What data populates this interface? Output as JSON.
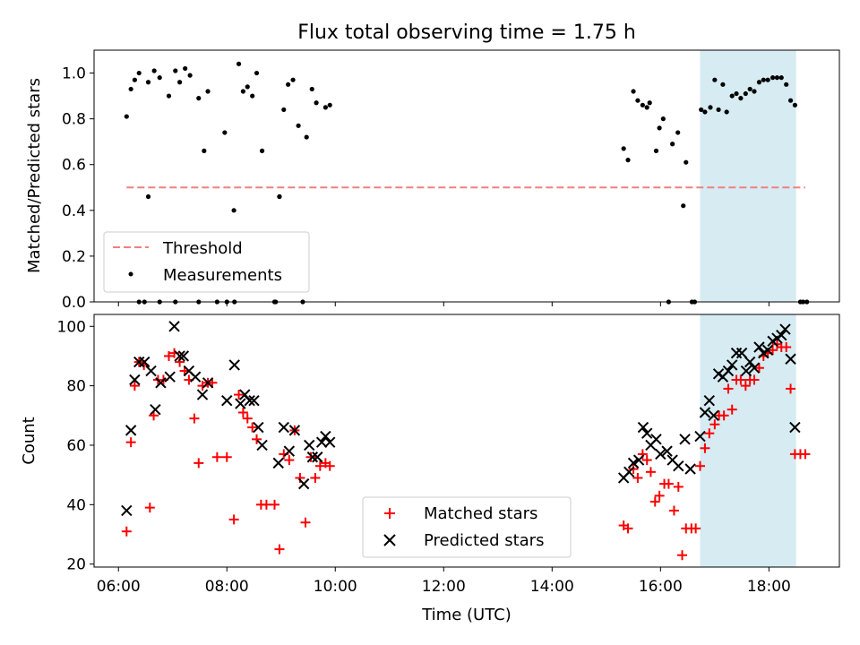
{
  "figure": {
    "title": "Flux total observing time = 1.75 h",
    "x_label": "Time (UTC)",
    "x_ticks": [
      {
        "value": 6,
        "label": "06:00"
      },
      {
        "value": 8,
        "label": "08:00"
      },
      {
        "value": 10,
        "label": "10:00"
      },
      {
        "value": 12,
        "label": "12:00"
      },
      {
        "value": 14,
        "label": "14:00"
      },
      {
        "value": 16,
        "label": "16:00"
      },
      {
        "value": 18,
        "label": "18:00"
      }
    ],
    "xlim": [
      5.55,
      19.3
    ],
    "highlight_span": [
      16.73,
      18.5
    ],
    "highlight_color": "#add8e6"
  },
  "chart_data": [
    {
      "type": "scatter",
      "panel": "top",
      "ylabel": "Matched/Predicted stars",
      "ylim": [
        0,
        1.1
      ],
      "y_ticks": [
        {
          "value": 0,
          "label": "0.0"
        },
        {
          "value": 0.2,
          "label": "0.2"
        },
        {
          "value": 0.4,
          "label": "0.4"
        },
        {
          "value": 0.6,
          "label": "0.6"
        },
        {
          "value": 0.8,
          "label": "0.8"
        },
        {
          "value": 1.0,
          "label": "1.0"
        }
      ],
      "legend_position": "lower-left",
      "threshold": {
        "name": "Threshold",
        "y": 0.5,
        "x_range": [
          6.15,
          18.67
        ],
        "color": "#f08080",
        "style": "dashed"
      },
      "series": [
        {
          "name": "Measurements",
          "color": "#000000",
          "marker": "dot",
          "x": [
            6.15,
            6.23,
            6.3,
            6.38,
            6.55,
            6.66,
            6.76,
            6.93,
            7.05,
            7.13,
            7.23,
            7.32,
            7.48,
            7.58,
            7.65,
            7.96,
            8.13,
            8.22,
            8.3,
            8.38,
            8.47,
            8.55,
            8.65,
            8.97,
            9.05,
            9.13,
            9.22,
            9.32,
            9.47,
            9.57,
            9.65,
            9.82,
            9.9,
            15.32,
            15.4,
            15.5,
            15.58,
            15.67,
            15.75,
            15.8,
            15.92,
            15.98,
            16.05,
            16.22,
            16.32,
            16.42,
            16.47,
            6.55,
            8.97,
            6.38,
            6.48,
            6.76,
            7.05,
            7.48,
            7.82,
            8.0,
            8.14,
            8.88,
            8.9,
            9.4,
            16.15,
            16.58,
            16.63,
            16.75,
            16.82,
            16.92,
            17.0,
            17.07,
            17.15,
            17.22,
            17.32,
            17.4,
            17.48,
            17.57,
            17.65,
            17.73,
            17.82,
            17.9,
            17.98,
            18.07,
            18.15,
            18.23,
            18.32,
            18.4,
            18.48,
            18.58,
            18.63,
            18.7
          ],
          "y": [
            0.81,
            0.93,
            0.97,
            1.0,
            0.96,
            1.01,
            0.98,
            0.9,
            1.01,
            0.96,
            1.02,
            0.99,
            0.89,
            0.66,
            0.92,
            0.74,
            0.4,
            1.04,
            0.92,
            0.94,
            0.9,
            1.0,
            0.66,
            0.46,
            0.84,
            0.95,
            0.97,
            0.77,
            0.72,
            0.93,
            0.87,
            0.85,
            0.86,
            0.67,
            0.62,
            0.92,
            0.88,
            0.86,
            0.85,
            0.87,
            0.66,
            0.76,
            0.8,
            0.69,
            0.74,
            0.42,
            0.61,
            0.46,
            0.46,
            0,
            0,
            0,
            0,
            0,
            0,
            0,
            0,
            0,
            0,
            0,
            0,
            0,
            0,
            0.84,
            0.83,
            0.85,
            0.97,
            0.84,
            0.95,
            0.83,
            0.9,
            0.91,
            0.89,
            0.91,
            0.93,
            0.92,
            0.96,
            0.97,
            0.97,
            0.98,
            0.98,
            0.98,
            0.95,
            0.88,
            0.86,
            0,
            0,
            0
          ]
        }
      ]
    },
    {
      "type": "scatter",
      "panel": "bottom",
      "ylabel": "Count",
      "ylim": [
        19,
        104
      ],
      "y_ticks": [
        {
          "value": 20,
          "label": "20"
        },
        {
          "value": 40,
          "label": "40"
        },
        {
          "value": 60,
          "label": "60"
        },
        {
          "value": 80,
          "label": "80"
        },
        {
          "value": 100,
          "label": "100"
        }
      ],
      "legend_position": "lower-center",
      "series": [
        {
          "name": "Matched stars",
          "color": "#ff0000",
          "marker": "plus",
          "x": [
            6.15,
            6.23,
            6.3,
            6.38,
            6.47,
            6.58,
            6.65,
            6.73,
            6.83,
            6.93,
            7.03,
            7.13,
            7.22,
            7.3,
            7.4,
            7.48,
            7.55,
            7.65,
            7.73,
            7.82,
            8.0,
            8.13,
            8.22,
            8.3,
            8.38,
            8.47,
            8.55,
            8.63,
            8.73,
            8.88,
            8.97,
            9.05,
            9.15,
            9.25,
            9.35,
            9.45,
            9.55,
            9.63,
            9.72,
            9.82,
            9.9,
            15.32,
            15.4,
            15.5,
            15.58,
            15.67,
            15.75,
            15.82,
            15.9,
            15.98,
            16.07,
            16.15,
            16.25,
            16.33,
            16.4,
            16.47,
            16.57,
            16.65,
            16.73,
            16.82,
            16.9,
            17.0,
            17.08,
            17.17,
            17.25,
            17.32,
            17.4,
            17.48,
            17.57,
            17.65,
            17.73,
            17.82,
            17.9,
            17.98,
            18.07,
            18.15,
            18.23,
            18.32,
            18.4,
            18.48,
            18.58,
            18.67
          ],
          "y": [
            31,
            61,
            80,
            88,
            87,
            39,
            70,
            82,
            82,
            90,
            91,
            88,
            85,
            82,
            69,
            54,
            80,
            81,
            81,
            56,
            56,
            35,
            77,
            71,
            69,
            66,
            62,
            40,
            40,
            40,
            25,
            57,
            55,
            65,
            49,
            34,
            56,
            49,
            53,
            54,
            53,
            33,
            32,
            52,
            49,
            57,
            55,
            51,
            41,
            43,
            47,
            47,
            38,
            46,
            23,
            32,
            32,
            32,
            53,
            59,
            64,
            67,
            70,
            70,
            79,
            72,
            82,
            82,
            80,
            82,
            82,
            86,
            90,
            91,
            92,
            94,
            93,
            93,
            79,
            57,
            57,
            57
          ],
          "note": "values read from figure"
        },
        {
          "name": "Predicted stars",
          "color": "#000000",
          "marker": "x",
          "x": [
            6.15,
            6.23,
            6.3,
            6.38,
            6.48,
            6.6,
            6.68,
            6.78,
            6.95,
            7.03,
            7.13,
            7.2,
            7.3,
            7.42,
            7.55,
            7.65,
            8.0,
            8.14,
            8.25,
            8.33,
            8.42,
            8.5,
            8.58,
            8.65,
            8.95,
            9.05,
            9.15,
            9.25,
            9.42,
            9.52,
            9.58,
            9.67,
            9.75,
            9.82,
            9.9,
            15.32,
            15.42,
            15.5,
            15.6,
            15.68,
            15.75,
            15.82,
            15.92,
            16.0,
            16.12,
            16.22,
            16.33,
            16.45,
            16.55,
            16.73,
            16.82,
            16.9,
            16.98,
            17.07,
            17.15,
            17.25,
            17.32,
            17.4,
            17.5,
            17.58,
            17.65,
            17.73,
            17.82,
            17.9,
            17.98,
            18.07,
            18.15,
            18.23,
            18.3,
            18.4,
            18.48
          ],
          "y": [
            38,
            65,
            82,
            88,
            88,
            85,
            72,
            81,
            83,
            100,
            90,
            90,
            85,
            83,
            77,
            81,
            75,
            87,
            74,
            77,
            75,
            75,
            66,
            60,
            54,
            66,
            58,
            65,
            47,
            60,
            56,
            56,
            61,
            63,
            61,
            49,
            51,
            54,
            55,
            66,
            64,
            60,
            62,
            57,
            58,
            55,
            53,
            62,
            52,
            63,
            71,
            75,
            70,
            84,
            83,
            85,
            87,
            91,
            91,
            85,
            88,
            86,
            93,
            91,
            92,
            95,
            96,
            97,
            99,
            89,
            66
          ]
        }
      ]
    }
  ]
}
